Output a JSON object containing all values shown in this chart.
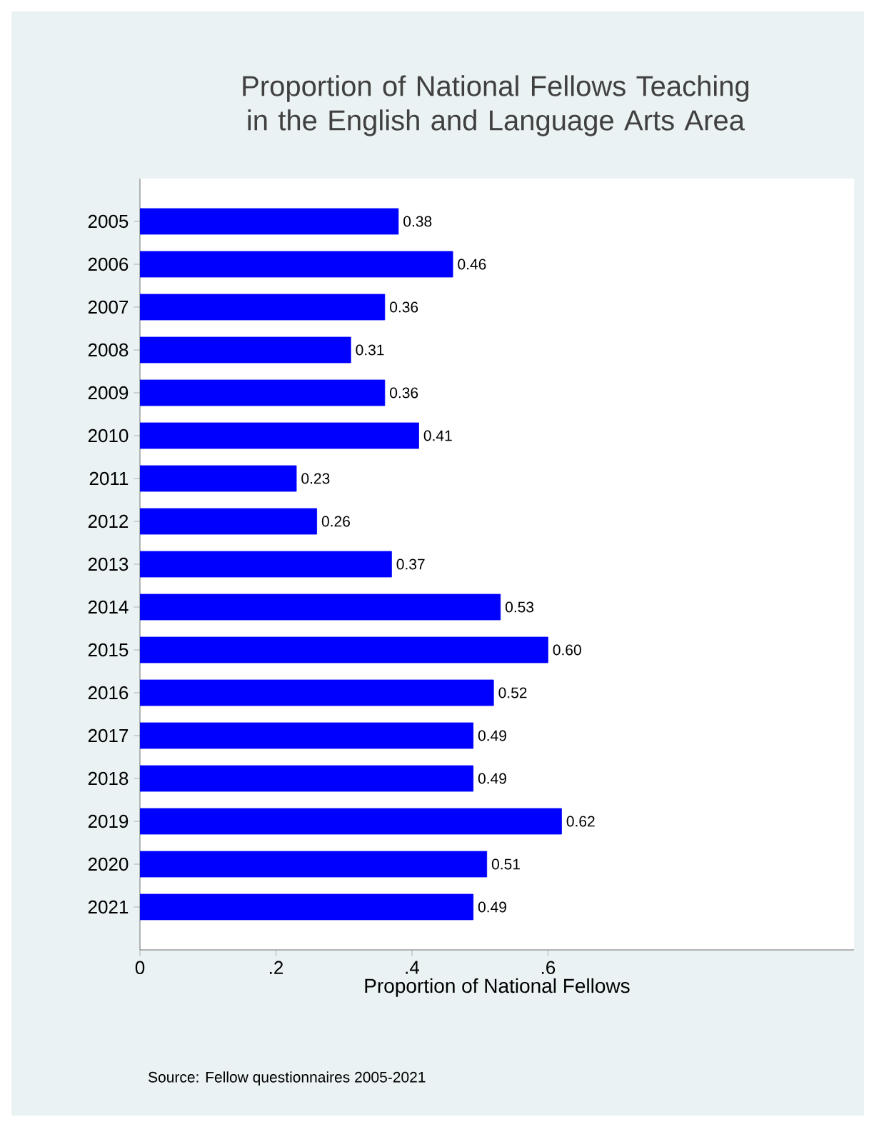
{
  "chart_data": {
    "type": "bar",
    "orientation": "horizontal",
    "title": "Proportion of National Fellows Teaching in the English and Language Arts Area",
    "xlabel": "Proportion of National Fellows",
    "categories": [
      "2005",
      "2006",
      "2007",
      "2008",
      "2009",
      "2010",
      "2011",
      "2012",
      "2013",
      "2014",
      "2015",
      "2016",
      "2017",
      "2018",
      "2019",
      "2020",
      "2021"
    ],
    "values": [
      0.38,
      0.46,
      0.36,
      0.31,
      0.36,
      0.41,
      0.23,
      0.26,
      0.37,
      0.53,
      0.6,
      0.52,
      0.49,
      0.49,
      0.62,
      0.51,
      0.49
    ],
    "value_labels": [
      "0.38",
      "0.46",
      "0.36",
      "0.31",
      "0.36",
      "0.41",
      "0.23",
      "0.26",
      "0.37",
      "0.53",
      "0.60",
      "0.52",
      "0.49",
      "0.49",
      "0.62",
      "0.51",
      "0.49"
    ],
    "color": "#0000ff",
    "xlim": [
      0,
      1.05
    ],
    "xticks": [
      0,
      {
        "value": 0.2,
        "label": ".2"
      },
      {
        "value": 0.4,
        "label": ".4"
      },
      {
        "value": 0.6,
        "label": ".6"
      }
    ],
    "grid": false,
    "annotations": [
      "Source: Fellow questionnaires 2005-2021"
    ]
  }
}
